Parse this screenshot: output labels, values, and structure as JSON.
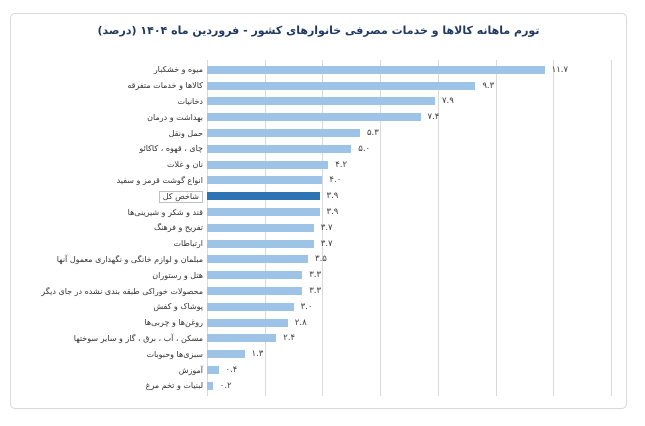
{
  "title": "تورم ماهانه کالاها و خدمات مصرفی خانوارهای کشور - فروردین ماه ۱۴۰۴ (درصد)",
  "chart_data": {
    "type": "bar",
    "orientation": "horizontal",
    "title": "تورم ماهانه کالاها و خدمات مصرفی خانوارهای کشور - فروردین ماه ۱۴۰۴ (درصد)",
    "categories": [
      "میوه و خشکبار",
      "کالاها و خدمات متفرقه",
      "دخانیات",
      "بهداشت و درمان",
      "حمل ونقل",
      "چای ، قهوه ، کاکائو",
      "نان و غلات",
      "انواع گوشت قرمز و سفید",
      "شاخص کل",
      "قند و شکر و شیرینی‌ها",
      "تفریح و فرهنگ",
      "ارتباطات",
      "مبلمان و لوازم خانگی و نگهداری معمول آنها",
      "هتل و رستوران",
      "محصولات خوراکی طبقه بندی نشده در جای دیگر",
      "پوشاک و کفش",
      "روغن‌ها و چربی‌ها",
      "مسکن ، آب ، برق ، گاز و سایر سوختها",
      "سبزی‌ها وحبوبات",
      "آموزش",
      "لبنیات و تخم مرغ"
    ],
    "values": [
      11.7,
      9.3,
      7.9,
      7.4,
      5.3,
      5.0,
      4.2,
      4.0,
      3.9,
      3.9,
      3.7,
      3.7,
      3.5,
      3.3,
      3.3,
      3.0,
      2.8,
      2.4,
      1.3,
      0.4,
      0.2
    ],
    "value_labels": [
      "۱۱.۷",
      "۹.۳",
      "۷.۹",
      "۷.۴",
      "۵.۳",
      "۵.۰",
      "۴.۲",
      "۴.۰",
      "۳.۹",
      "۳.۹",
      "۳.۷",
      "۳.۷",
      "۳.۵",
      "۳.۳",
      "۳.۳",
      "۳.۰",
      "۲.۸",
      "۲.۴",
      "۱.۳",
      "۰.۴",
      "۰.۲"
    ],
    "highlight_category": "شاخص کل",
    "highlight_index": 8,
    "xlim": [
      0,
      14
    ],
    "gridline_step": 2,
    "grid": true,
    "legend": "none",
    "xlabel": "",
    "ylabel": "",
    "colors": {
      "bar": "#9DC3E6",
      "highlight_bar": "#2E74B5",
      "gridline": "#D9D9D9",
      "card_border": "#D9D9D9",
      "title_text": "#1F3864",
      "label_text": "#333333",
      "value_text": "#3B3B3B"
    }
  }
}
